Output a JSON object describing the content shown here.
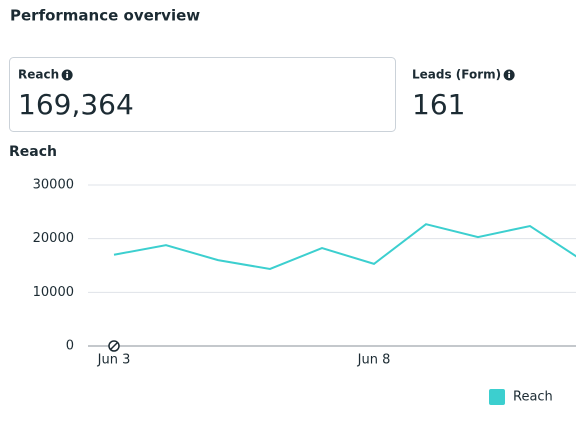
{
  "header": {
    "title": "Performance overview"
  },
  "metrics": [
    {
      "label": "Reach",
      "value": "169,364"
    },
    {
      "label": "Leads (Form)",
      "value": "161"
    }
  ],
  "chart_data": {
    "type": "line",
    "title": "Reach",
    "categories": [
      "Jun 3",
      null,
      null,
      null,
      null,
      "Jun 8",
      null,
      null,
      null,
      null
    ],
    "series": [
      {
        "name": "Reach",
        "color": "#3ccfcf",
        "values": [
          17000,
          18800,
          16000,
          14350,
          18250,
          15300,
          22700,
          20300,
          22350,
          16000
        ]
      }
    ],
    "ylim": [
      0,
      30000
    ],
    "yticks": [
      0,
      10000,
      20000,
      30000
    ],
    "grid": true,
    "legend": "bottom-right"
  }
}
